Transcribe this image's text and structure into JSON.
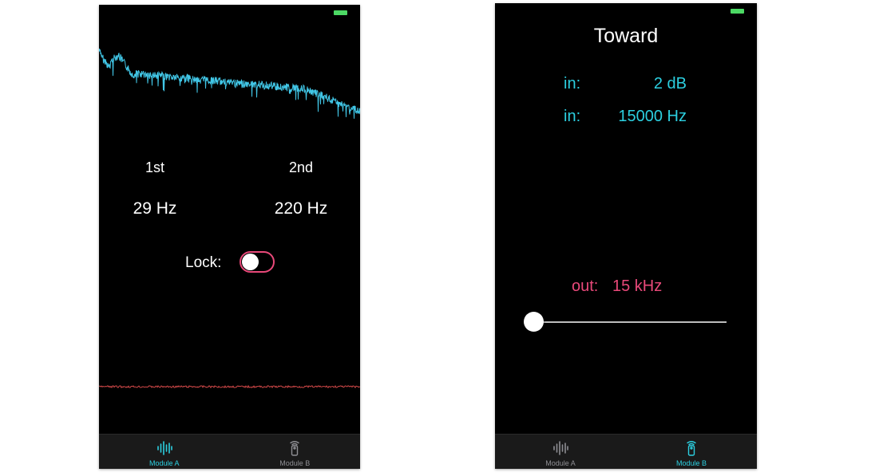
{
  "colors": {
    "accent": "#2ccfe0",
    "pink": "#e9497a",
    "spectrum": "#41c6e6",
    "baseline": "#d04848",
    "battery": "#4cd964",
    "tab_inactive": "#8e8e93"
  },
  "screen_a": {
    "peaks": {
      "first": {
        "label": "1st",
        "value": "29 Hz"
      },
      "second": {
        "label": "2nd",
        "value": "220 Hz"
      }
    },
    "lock": {
      "label": "Lock:",
      "on": false
    }
  },
  "screen_b": {
    "title": "Toward",
    "inputs": [
      {
        "label": "in:",
        "value": "2 dB"
      },
      {
        "label": "in:",
        "value": "15000 Hz"
      }
    ],
    "output": {
      "label": "out:",
      "value": "15 kHz"
    },
    "slider": {
      "value": 0.0
    }
  },
  "tabs": [
    {
      "label": "Module A",
      "icon": "waveform-icon"
    },
    {
      "label": "Module B",
      "icon": "remote-control-icon"
    }
  ],
  "active_tab": {
    "screen_a": 0,
    "screen_b": 1
  }
}
